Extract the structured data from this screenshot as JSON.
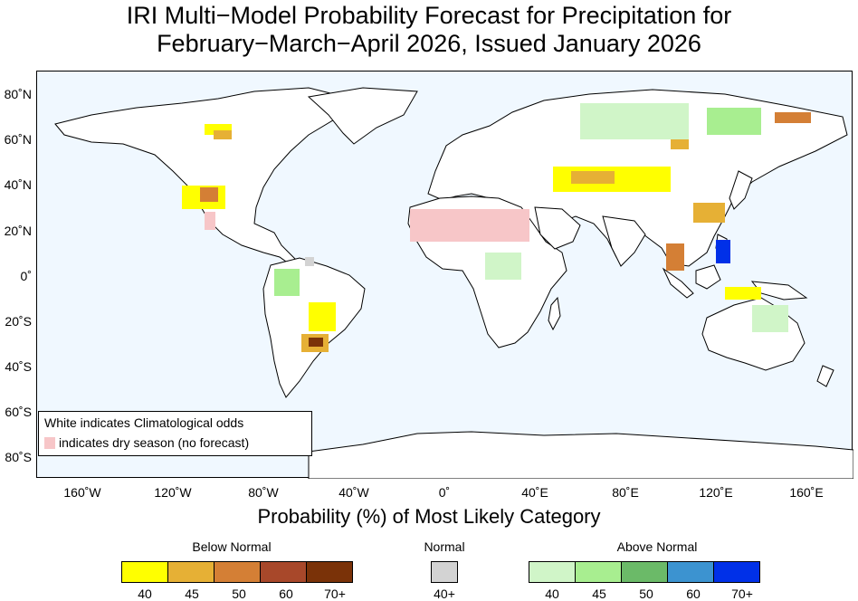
{
  "title_line1": "IRI Multi−Model Probability Forecast for Precipitation for",
  "title_line2": "February−March−April 2026, Issued January 2026",
  "map": {
    "lat_labels": [
      "80˚N",
      "60˚N",
      "40˚N",
      "20˚N",
      "0˚",
      "20˚S",
      "40˚S",
      "60˚S",
      "80˚S"
    ],
    "lon_labels": [
      "160˚W",
      "120˚W",
      "80˚W",
      "40˚W",
      "0˚",
      "40˚E",
      "80˚E",
      "120˚E",
      "160˚E"
    ],
    "ocean_color": "#f0f8ff",
    "land_color": "#ffffff"
  },
  "note": {
    "line1": "White indicates Climatological odds",
    "line2": "indicates dry season (no forecast)",
    "dry_color": "#f7c6c8"
  },
  "x_axis_title": "Probability (%) of Most Likely Category",
  "legend": {
    "below": {
      "heading": "Below Normal",
      "labels": [
        "40",
        "45",
        "50",
        "60",
        "70+"
      ],
      "colors": [
        "#ffff00",
        "#e6b035",
        "#d47f35",
        "#a8482a",
        "#7a3208"
      ]
    },
    "normal": {
      "heading": "Normal",
      "labels": [
        "40+"
      ],
      "colors": [
        "#d3d3d3"
      ]
    },
    "above": {
      "heading": "Above Normal",
      "labels": [
        "40",
        "45",
        "50",
        "60",
        "70+"
      ],
      "colors": [
        "#d0f5c8",
        "#a8ee90",
        "#6bba68",
        "#3c93d0",
        "#0030e8"
      ]
    }
  }
}
